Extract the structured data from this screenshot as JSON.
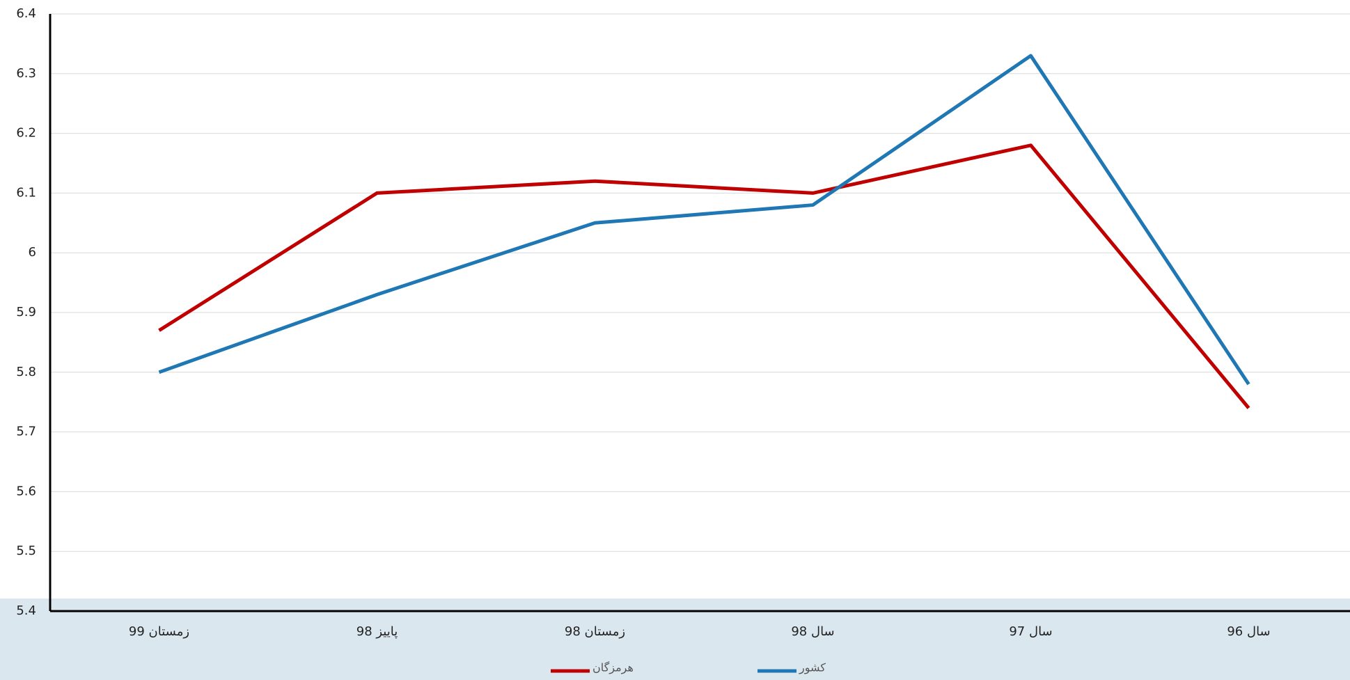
{
  "chart_data": {
    "type": "line",
    "categories": [
      "زمستان 99",
      "پاییز 98",
      "زمستان 98",
      "سال 98",
      "سال 97",
      "سال 96"
    ],
    "series": [
      {
        "name": "هرمزگان",
        "color": "#c00000",
        "values": [
          5.87,
          6.1,
          6.12,
          6.1,
          6.18,
          5.74
        ]
      },
      {
        "name": "کشور",
        "color": "#1f77b4",
        "values": [
          5.8,
          5.93,
          6.05,
          6.08,
          6.33,
          5.78
        ]
      }
    ],
    "ylim": [
      5.4,
      6.4
    ],
    "yticks": [
      5.4,
      5.5,
      5.6,
      5.7,
      5.8,
      5.9,
      6,
      6.1,
      6.2,
      6.3,
      6.4
    ],
    "grid": true
  }
}
